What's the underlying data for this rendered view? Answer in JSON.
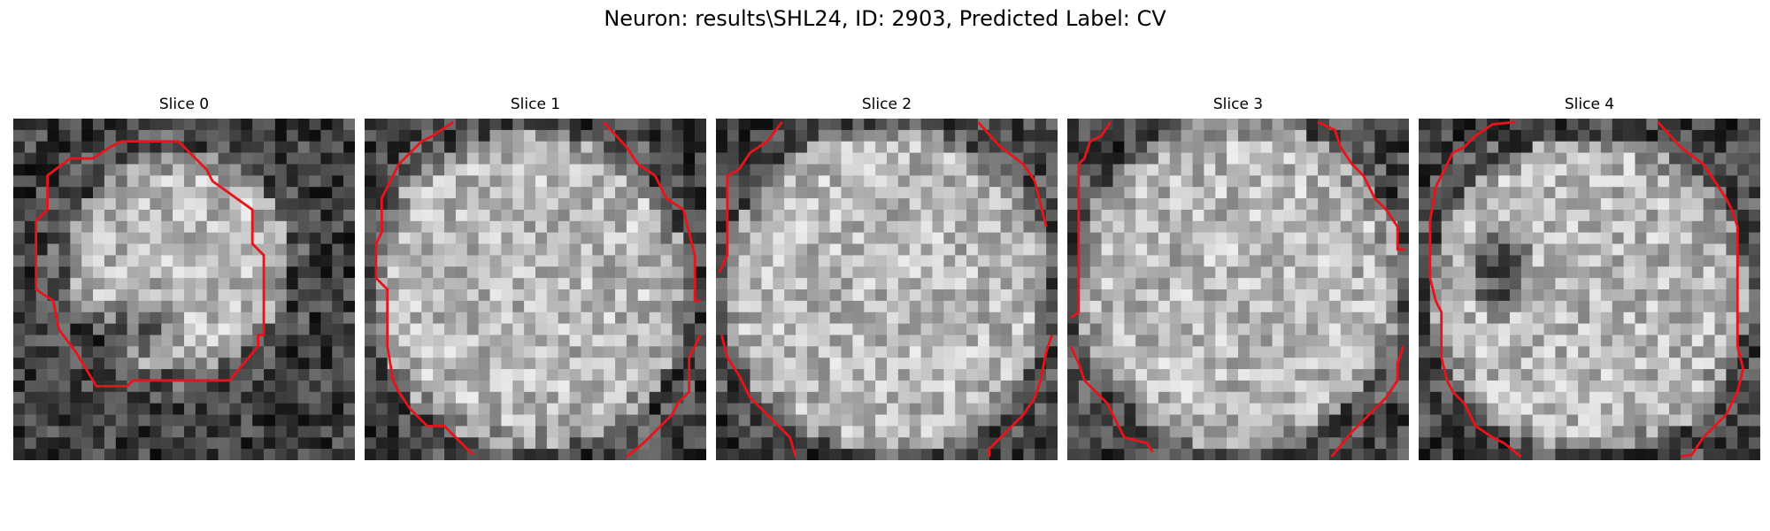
{
  "figure": {
    "title": "Neuron: results\\SHL24, ID: 2903, Predicted Label: CV",
    "outline_color": "#e8141b"
  },
  "panels": [
    {
      "title": "Slice 0"
    },
    {
      "title": "Slice 1"
    },
    {
      "title": "Slice 2"
    },
    {
      "title": "Slice 3"
    },
    {
      "title": "Slice 4"
    }
  ]
}
